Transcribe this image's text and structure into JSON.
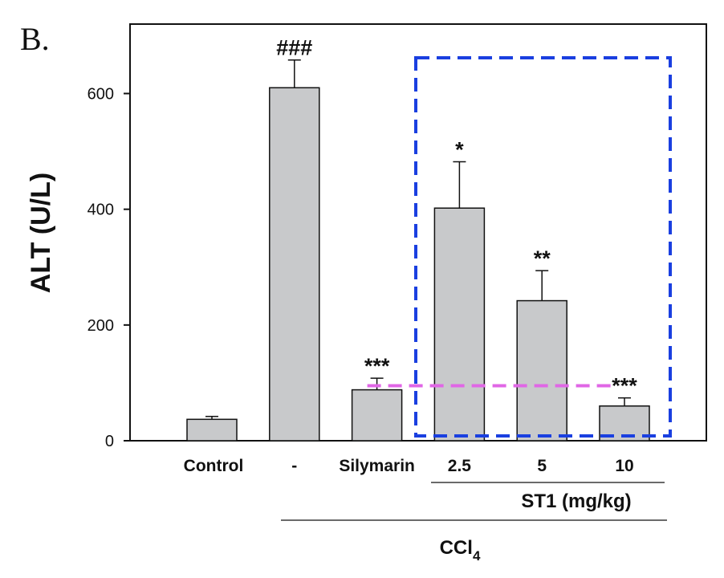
{
  "panel_label": "B.",
  "chart_data": {
    "type": "bar",
    "ylabel": "ALT (U/L)",
    "ylim": [
      0,
      720
    ],
    "yticks": [
      0,
      200,
      400,
      600
    ],
    "categories": [
      "Control",
      "-",
      "Silymarin",
      "2.5",
      "5",
      "10"
    ],
    "values": [
      37,
      610,
      88,
      402,
      242,
      60
    ],
    "errors": [
      5,
      48,
      20,
      80,
      52,
      14
    ],
    "significance": [
      "",
      "###",
      "***",
      "*",
      "**",
      "***"
    ],
    "bar_color": "#c8c9cb",
    "groups": [
      {
        "label": "ST1 (mg/kg)",
        "from": 3,
        "to": 5
      },
      {
        "label_main": "CCl",
        "label_sub": "4",
        "from": 1,
        "to": 5
      }
    ],
    "highlight_box_color": "#1a3fe0",
    "reference_line": {
      "value": 95,
      "color": "#e066e6"
    }
  }
}
